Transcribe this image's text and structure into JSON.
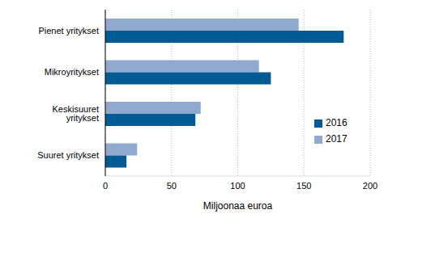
{
  "chart_data": {
    "type": "bar",
    "orientation": "horizontal",
    "x_label": "Miljoonaa euroa",
    "categories": [
      "Pienet yritykset",
      "Mikroyritykset",
      "Keskisuuret yritykset",
      "Suuret yritykset"
    ],
    "series": [
      {
        "name": "2017",
        "color": "#8fa9cf",
        "values": [
          146,
          116,
          72,
          24
        ]
      },
      {
        "name": "2016",
        "color": "#005b95",
        "values": [
          180,
          125,
          68,
          16
        ]
      }
    ],
    "xlim": [
      0,
      200
    ],
    "xticks": [
      0,
      50,
      100,
      150,
      200
    ],
    "grid": true,
    "legend": "right"
  }
}
